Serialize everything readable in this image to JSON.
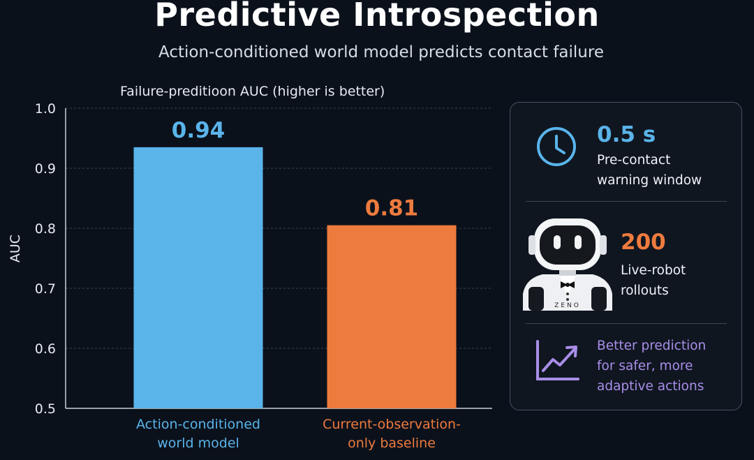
{
  "header": {
    "title": "Predictive Introspection",
    "subtitle": "Action-conditioned world model predicts contact failure"
  },
  "chart_data": {
    "type": "bar",
    "title": "Failure-preditioon AUC (higher is better)",
    "ylabel": "AUC",
    "xlabel": "",
    "ylim": [
      0.5,
      1.0
    ],
    "yticks": [
      0.5,
      0.6,
      0.7,
      0.8,
      0.9,
      1.0
    ],
    "ytick_labels": [
      "0.5",
      "0.6",
      "0.7",
      "0.8",
      "0.9",
      "1.0"
    ],
    "grid": true,
    "categories": [
      [
        "Action-conditioned",
        "world model"
      ],
      [
        "Current-observation-",
        "only baseline"
      ]
    ],
    "values": [
      0.935,
      0.805
    ],
    "value_labels": [
      "0.94",
      "0.81"
    ],
    "colors": [
      "#5ab4ea",
      "#ee7b3e"
    ]
  },
  "panel": {
    "stat1": {
      "value": "0.5 s",
      "label_line1": "Pre-contact",
      "label_line2": "warning window",
      "icon": "clock-icon",
      "color": "#5ab4ea"
    },
    "stat2": {
      "value": "200",
      "label_line1": "Live-robot",
      "label_line2": "rollouts",
      "icon": "robot-icon",
      "robot_text": "ZENO",
      "color": "#ee7b3e"
    },
    "note": {
      "line1": "Better prediction",
      "line2": "for safer, more",
      "line3": "adaptive actions",
      "icon": "trend-chart-icon",
      "color": "#a98ee8"
    }
  }
}
